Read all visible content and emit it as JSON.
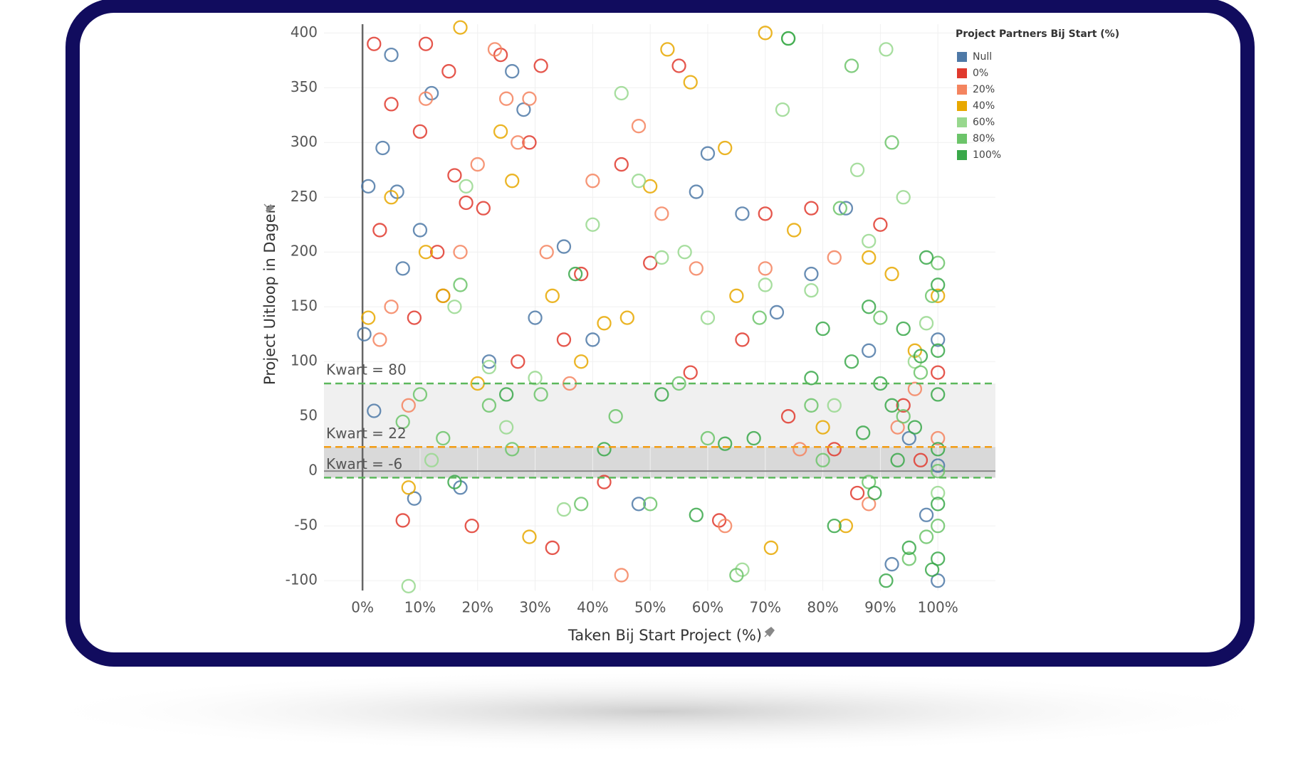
{
  "chart_data": {
    "type": "scatter",
    "x_label": "Taken Bij Start Project (%)",
    "y_label": "Project Uitloop in Dagen",
    "legend_title": "Project Partners Bij Start (%)",
    "legend_position": "top-right",
    "grid": true,
    "xlim": [
      -6.7,
      110
    ],
    "ylim": [
      -109,
      408
    ],
    "xticks": [
      {
        "value": 0,
        "label": "0%"
      },
      {
        "value": 10,
        "label": "10%"
      },
      {
        "value": 20,
        "label": "20%"
      },
      {
        "value": 30,
        "label": "30%"
      },
      {
        "value": 40,
        "label": "40%"
      },
      {
        "value": 50,
        "label": "50%"
      },
      {
        "value": 60,
        "label": "60%"
      },
      {
        "value": 70,
        "label": "70%"
      },
      {
        "value": 80,
        "label": "80%"
      },
      {
        "value": 90,
        "label": "90%"
      },
      {
        "value": 100,
        "label": "100%"
      }
    ],
    "yticks": [
      -100,
      -50,
      0,
      50,
      100,
      150,
      200,
      250,
      300,
      350,
      400
    ],
    "reference_lines": [
      {
        "value": 80,
        "label": "Kwart = 80",
        "color": "#5cb85c"
      },
      {
        "value": 22,
        "label": "Kwart = 22",
        "color": "#f39c12"
      },
      {
        "value": -6,
        "label": "Kwart = -6",
        "color": "#5cb85c"
      }
    ],
    "bands": [
      {
        "from": 22,
        "to": 80,
        "color": "#ececec"
      },
      {
        "from": -6,
        "to": 22,
        "color": "#cfcfcf"
      }
    ],
    "series": [
      {
        "name": "Null",
        "color": "#4e79a7",
        "x": [
          0.3,
          1,
          2,
          3.5,
          5,
          6,
          7,
          9,
          10,
          12,
          14,
          17,
          22,
          26,
          28,
          30,
          35,
          40,
          48,
          58,
          60,
          66,
          72,
          78,
          84,
          88,
          92,
          95,
          98,
          100,
          100,
          100
        ],
        "y": [
          125,
          260,
          55,
          295,
          380,
          255,
          185,
          -25,
          220,
          345,
          160,
          -15,
          100,
          365,
          330,
          140,
          205,
          120,
          -30,
          255,
          290,
          235,
          145,
          180,
          240,
          110,
          -85,
          30,
          -40,
          5,
          -100,
          120
        ]
      },
      {
        "name": "0%",
        "color": "#e03a2e",
        "x": [
          2,
          3,
          5,
          7,
          9,
          10,
          11,
          13,
          15,
          16,
          18,
          19,
          21,
          24,
          27,
          29,
          31,
          33,
          35,
          38,
          42,
          45,
          50,
          55,
          57,
          62,
          66,
          70,
          74,
          78,
          82,
          86,
          90,
          94,
          97,
          100
        ],
        "y": [
          390,
          220,
          335,
          -45,
          140,
          310,
          390,
          200,
          365,
          270,
          245,
          -50,
          240,
          380,
          100,
          300,
          370,
          -70,
          120,
          180,
          -10,
          280,
          190,
          370,
          90,
          -45,
          120,
          235,
          50,
          240,
          20,
          -20,
          225,
          60,
          10,
          90
        ]
      },
      {
        "name": "20%",
        "color": "#f4845f",
        "x": [
          3,
          5,
          8,
          11,
          14,
          17,
          20,
          23,
          25,
          27,
          29,
          32,
          36,
          40,
          45,
          48,
          52,
          58,
          63,
          70,
          76,
          82,
          88,
          93,
          96,
          100
        ],
        "y": [
          120,
          150,
          60,
          340,
          160,
          200,
          280,
          385,
          340,
          300,
          340,
          200,
          80,
          265,
          -95,
          315,
          235,
          185,
          -50,
          185,
          20,
          195,
          -30,
          40,
          75,
          30
        ]
      },
      {
        "name": "40%",
        "color": "#e8a800",
        "x": [
          1,
          5,
          8,
          11,
          14,
          17,
          20,
          24,
          26,
          29,
          33,
          38,
          42,
          46,
          50,
          53,
          57,
          63,
          65,
          70,
          71,
          75,
          80,
          84,
          88,
          92,
          96,
          100
        ],
        "y": [
          140,
          250,
          -15,
          200,
          160,
          405,
          80,
          310,
          265,
          -60,
          160,
          100,
          135,
          140,
          260,
          385,
          355,
          295,
          160,
          400,
          -70,
          220,
          40,
          -50,
          195,
          180,
          110,
          160
        ]
      },
      {
        "name": "60%",
        "color": "#98d88e",
        "x": [
          8,
          12,
          16,
          18,
          22,
          25,
          30,
          35,
          40,
          45,
          48,
          52,
          56,
          60,
          66,
          70,
          73,
          78,
          82,
          86,
          88,
          91,
          94,
          96,
          98,
          100
        ],
        "y": [
          -105,
          10,
          150,
          260,
          95,
          40,
          85,
          -35,
          225,
          345,
          265,
          195,
          200,
          140,
          -90,
          170,
          330,
          165,
          60,
          275,
          210,
          385,
          250,
          100,
          135,
          -20
        ]
      },
      {
        "name": "80%",
        "color": "#6cc46a",
        "x": [
          7,
          10,
          14,
          17,
          22,
          26,
          31,
          38,
          44,
          50,
          55,
          60,
          65,
          69,
          74,
          78,
          80,
          83,
          85,
          88,
          90,
          92,
          94,
          95,
          97,
          98,
          99,
          100,
          100,
          100
        ],
        "y": [
          45,
          70,
          30,
          170,
          60,
          20,
          70,
          -30,
          50,
          -30,
          80,
          30,
          -95,
          140,
          395,
          60,
          10,
          240,
          370,
          -10,
          140,
          300,
          50,
          -80,
          90,
          -60,
          160,
          190,
          0,
          -50
        ]
      },
      {
        "name": "100%",
        "color": "#3aa84a",
        "x": [
          16,
          25,
          37,
          42,
          52,
          58,
          63,
          68,
          74,
          78,
          80,
          82,
          85,
          87,
          88,
          89,
          90,
          91,
          92,
          93,
          94,
          95,
          96,
          97,
          98,
          99,
          100,
          100,
          100,
          100,
          100,
          100
        ],
        "y": [
          -10,
          70,
          180,
          20,
          70,
          -40,
          25,
          30,
          395,
          85,
          130,
          -50,
          100,
          35,
          150,
          -20,
          80,
          -100,
          60,
          10,
          130,
          -70,
          40,
          105,
          195,
          -90,
          170,
          70,
          20,
          -30,
          -80,
          110
        ]
      }
    ]
  }
}
